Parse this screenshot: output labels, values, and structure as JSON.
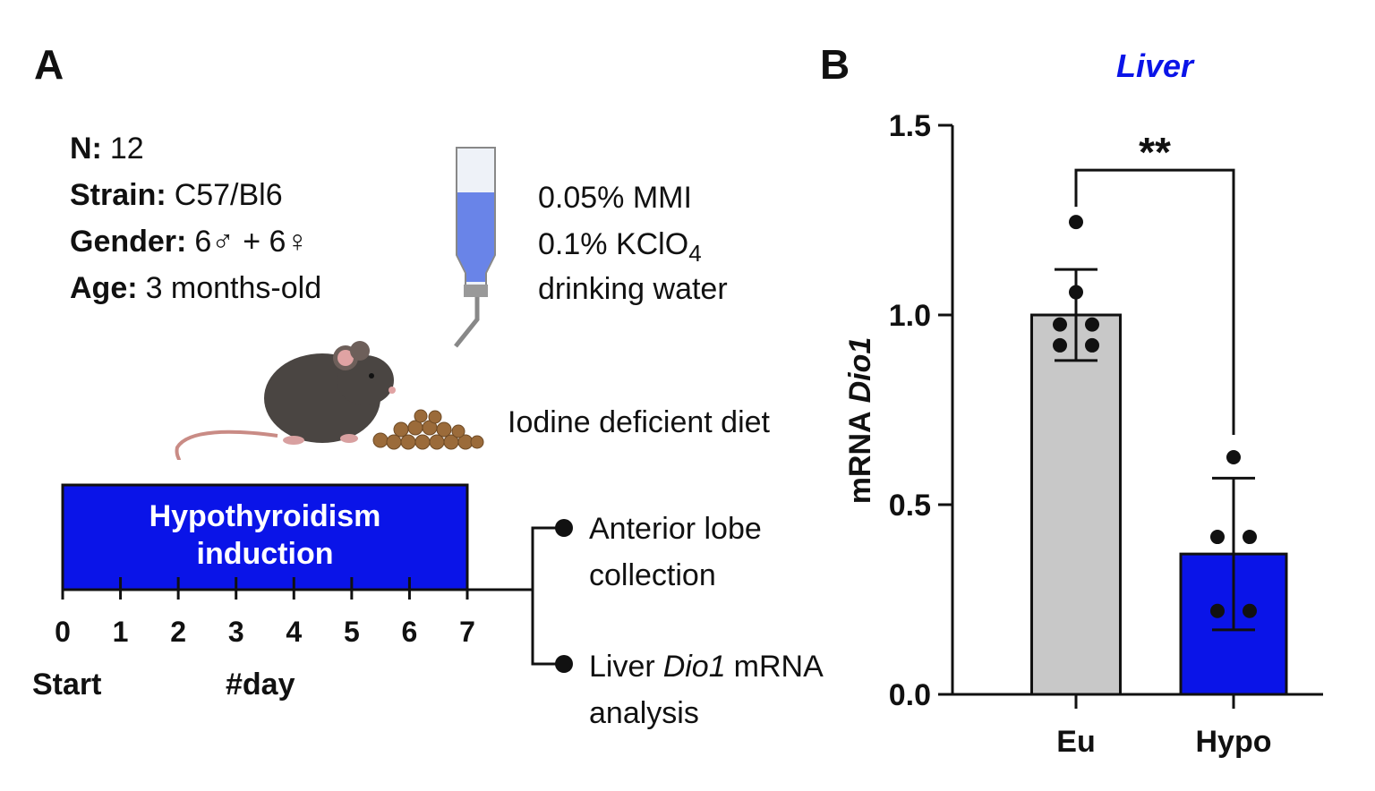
{
  "panel_a": {
    "label": "A",
    "facts": [
      {
        "key": "N:",
        "value": "12"
      },
      {
        "key": "Strain:",
        "value": "C57/Bl6"
      },
      {
        "key": "Gender:",
        "value": "6♂ + 6♀"
      },
      {
        "key": "Age:",
        "value": "3 months-old"
      }
    ],
    "water": {
      "line1": "0.05% MMI",
      "line2": {
        "text": "0.1% KClO",
        "subscript": "4"
      },
      "line3": "drinking water"
    },
    "diet": "Iodine deficient diet",
    "induction": [
      "Hypothyroidism",
      "induction"
    ],
    "days": [
      "0",
      "1",
      "2",
      "3",
      "4",
      "5",
      "6",
      "7"
    ],
    "start": "Start",
    "day_label": "#day",
    "outcome1": [
      "Anterior lobe",
      "collection"
    ],
    "outcome2": {
      "pre": "Liver",
      "italic": "Dio1",
      "post": "mRNA",
      "line2": "analysis"
    }
  },
  "chart_data": {
    "type": "bar",
    "panel_label": "B",
    "title": "Liver",
    "ylabel": {
      "plain": "mRNA",
      "italic": "Dio1"
    },
    "categories": [
      "Eu",
      "Hypo"
    ],
    "values": [
      1.0,
      0.37
    ],
    "errors": [
      0.12,
      0.2
    ],
    "colors": [
      "#c8c8c8",
      "#0a14e8"
    ],
    "points": [
      [
        1.245,
        1.06,
        0.975,
        0.975,
        0.92,
        0.92
      ],
      [
        0.625,
        0.415,
        0.415,
        0.22,
        0.22
      ]
    ],
    "significance": "**",
    "ylim": [
      0,
      1.5
    ],
    "yticks": [
      {
        "value": 0,
        "label": "0.0"
      },
      0.5,
      {
        "value": 1,
        "label": "1.0"
      },
      1.5
    ]
  }
}
